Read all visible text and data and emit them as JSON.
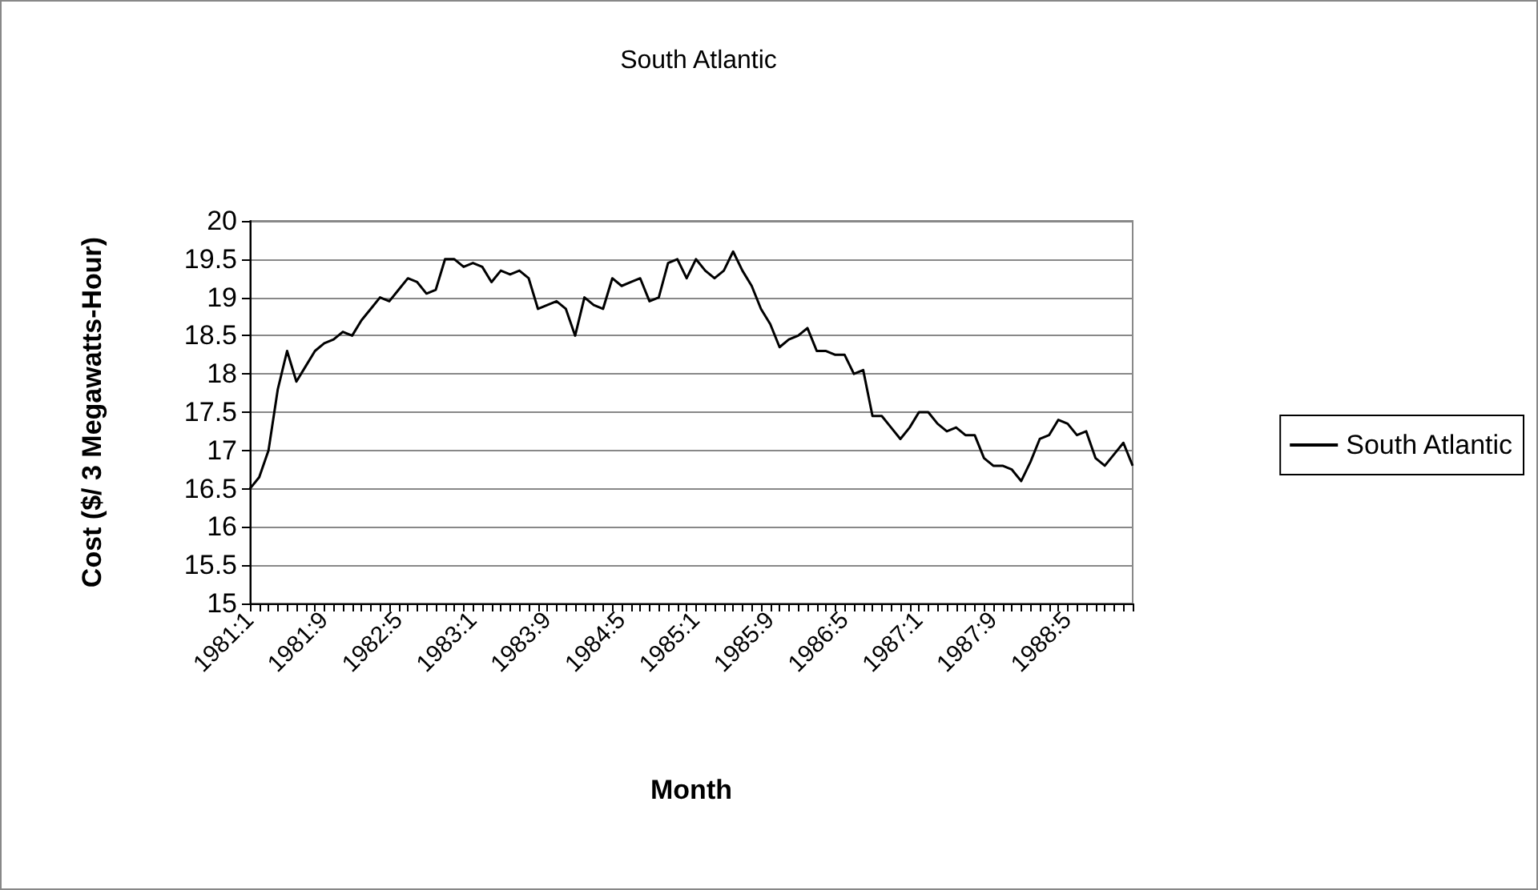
{
  "chart_data": {
    "type": "line",
    "title": "South Atlantic",
    "xlabel": "Month",
    "ylabel": "Cost ($/ 3 Megawatts-Hour)",
    "categories": [
      "1981:1",
      null,
      null,
      null,
      null,
      null,
      null,
      null,
      "1981:9",
      null,
      null,
      null,
      null,
      null,
      null,
      null,
      "1982:5",
      null,
      null,
      null,
      null,
      null,
      null,
      null,
      "1983:1",
      null,
      null,
      null,
      null,
      null,
      null,
      null,
      "1983:9",
      null,
      null,
      null,
      null,
      null,
      null,
      null,
      "1984:5",
      null,
      null,
      null,
      null,
      null,
      null,
      null,
      "1985:1",
      null,
      null,
      null,
      null,
      null,
      null,
      null,
      "1985:9",
      null,
      null,
      null,
      null,
      null,
      null,
      null,
      "1986:5",
      null,
      null,
      null,
      null,
      null,
      null,
      null,
      "1987:1",
      null,
      null,
      null,
      null,
      null,
      null,
      null,
      "1987:9",
      null,
      null,
      null,
      null,
      null,
      null,
      null,
      "1988:5",
      null,
      null,
      null,
      null,
      null,
      null,
      null
    ],
    "series": [
      {
        "name": "South Atlantic",
        "color": "#000000",
        "values": [
          16.5,
          16.65,
          17.0,
          17.8,
          18.3,
          17.9,
          18.1,
          18.3,
          18.4,
          18.45,
          18.55,
          18.5,
          18.7,
          18.85,
          19.0,
          18.95,
          19.1,
          19.25,
          19.2,
          19.05,
          19.1,
          19.5,
          19.5,
          19.4,
          19.45,
          19.4,
          19.2,
          19.35,
          19.3,
          19.35,
          19.25,
          18.85,
          18.9,
          18.95,
          18.85,
          18.5,
          19.0,
          18.9,
          18.85,
          19.25,
          19.15,
          19.2,
          19.25,
          18.95,
          19.0,
          19.45,
          19.5,
          19.25,
          19.5,
          19.35,
          19.25,
          19.35,
          19.6,
          19.35,
          19.15,
          18.85,
          18.65,
          18.35,
          18.45,
          18.5,
          18.6,
          18.3,
          18.3,
          18.25,
          18.25,
          18.0,
          18.05,
          17.45,
          17.45,
          17.3,
          17.15,
          17.3,
          17.5,
          17.5,
          17.35,
          17.25,
          17.3,
          17.2,
          17.2,
          16.9,
          16.8,
          16.8,
          16.75,
          16.6,
          16.85,
          17.15,
          17.2,
          17.4,
          17.35,
          17.2,
          17.25,
          16.9,
          16.8,
          16.95,
          17.1,
          16.8
        ]
      }
    ],
    "ylim": [
      15,
      20
    ],
    "yticks": [
      15,
      15.5,
      16,
      16.5,
      17,
      17.5,
      18,
      18.5,
      19,
      19.5,
      20
    ],
    "grid": "y",
    "legend": "right",
    "marker": "none",
    "line_style": "solid"
  }
}
